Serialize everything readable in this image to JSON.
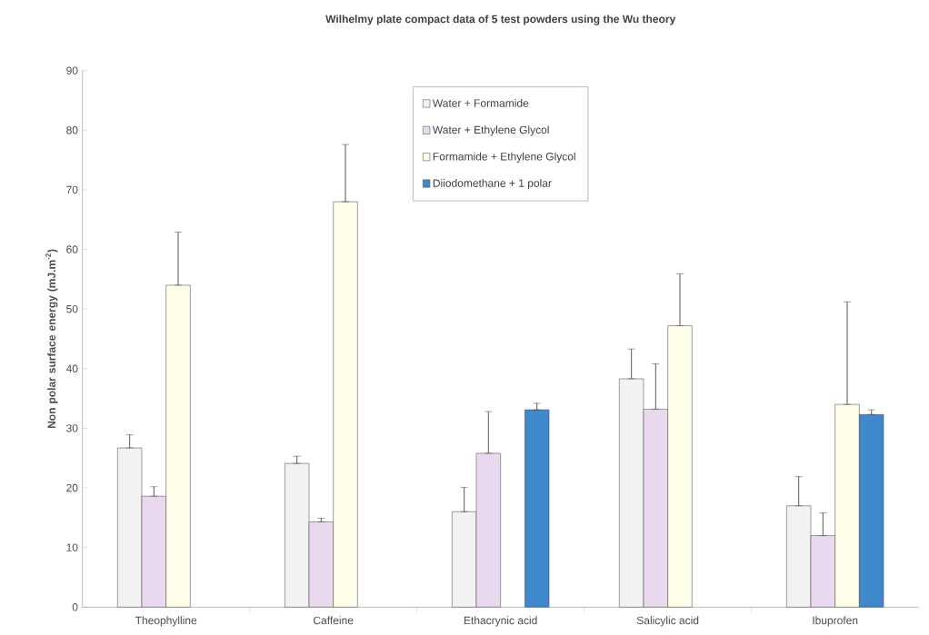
{
  "chart_data": {
    "type": "bar",
    "title": "Wilhelmy plate compact data of 5 test powders using the Wu theory",
    "ylabel": "Non polar surface energy (mJ.m$^{-2}$)",
    "categories": [
      "Theophylline",
      "Caffeine",
      "Ethacrynic acid",
      "Salicylic acid",
      "Ibuprofen"
    ],
    "series": [
      {
        "name": "Water + Formamide",
        "color": "#f2f2f2",
        "values": [
          26.7,
          24.1,
          16,
          38.3,
          17
        ],
        "errors": [
          [
            26.7,
            28.9
          ],
          [
            24.1,
            25.3
          ],
          [
            16,
            20.1
          ],
          [
            38.3,
            43.3
          ],
          [
            17,
            21.9
          ]
        ]
      },
      {
        "name": "Water + Ethylene Glycol",
        "color": "#ead9ee",
        "values": [
          18.6,
          14.3,
          25.8,
          33.2,
          12
        ],
        "errors": [
          [
            18.6,
            20.2
          ],
          [
            14.3,
            14.9
          ],
          [
            25.8,
            32.8
          ],
          [
            33.2,
            40.8
          ],
          [
            12,
            15.8
          ]
        ]
      },
      {
        "name": "Formamide + Ethylene Glycol",
        "color": "#fdfde9",
        "values": [
          54,
          68,
          null,
          47.2,
          34
        ],
        "errors": [
          [
            54,
            62.9
          ],
          [
            68,
            77.6
          ],
          null,
          [
            47.2,
            55.9
          ],
          [
            34,
            51.2
          ]
        ]
      },
      {
        "name": "Diiodomethane + 1 polar",
        "color": "#3f88cc",
        "values": [
          null,
          null,
          33.1,
          null,
          32.3
        ],
        "errors": [
          null,
          null,
          [
            33.1,
            34.2
          ],
          null,
          [
            32.3,
            33.1
          ]
        ]
      }
    ],
    "ylim": [
      0,
      90
    ],
    "yticks": [
      0,
      10,
      20,
      30,
      40,
      50,
      60,
      70,
      80,
      90
    ],
    "legend": "top",
    "grid": false
  }
}
